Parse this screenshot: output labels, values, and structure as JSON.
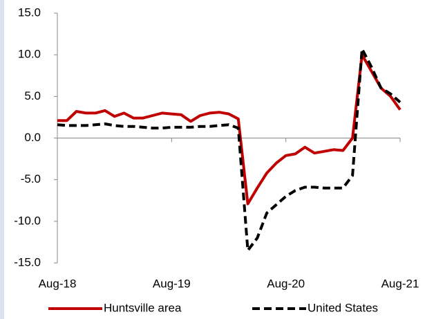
{
  "chart_data": {
    "type": "line",
    "categories": [
      "Aug-18",
      null,
      null,
      null,
      null,
      null,
      null,
      null,
      null,
      null,
      null,
      null,
      "Aug-19",
      null,
      null,
      null,
      null,
      null,
      null,
      null,
      null,
      null,
      null,
      null,
      "Aug-20",
      null,
      null,
      null,
      null,
      null,
      null,
      null,
      null,
      null,
      null,
      null,
      "Aug-21"
    ],
    "series": [
      {
        "name": "Huntsville area",
        "color": "#c00000",
        "dash": "solid",
        "values": [
          2.1,
          2.1,
          3.2,
          3.0,
          3.0,
          3.3,
          2.6,
          3.0,
          2.4,
          2.4,
          2.7,
          3.0,
          2.9,
          2.8,
          2.0,
          2.7,
          3.0,
          3.1,
          2.9,
          2.3,
          -7.9,
          -6.0,
          -4.2,
          -3.0,
          -2.1,
          -1.9,
          -1.1,
          -1.8,
          -1.6,
          -1.4,
          -1.5,
          0.0,
          10.0,
          8.0,
          6.0,
          5.0,
          3.4
        ]
      },
      {
        "name": "United States",
        "color": "#000000",
        "dash": "dashed",
        "values": [
          1.6,
          1.5,
          1.5,
          1.5,
          1.6,
          1.7,
          1.5,
          1.4,
          1.4,
          1.3,
          1.2,
          1.2,
          1.3,
          1.3,
          1.3,
          1.4,
          1.4,
          1.5,
          1.6,
          1.2,
          -13.5,
          -12.0,
          -9.0,
          -8.0,
          -7.0,
          -6.3,
          -5.9,
          -5.9,
          -6.0,
          -6.0,
          -6.0,
          -4.5,
          10.7,
          8.5,
          6.0,
          5.3,
          4.3
        ]
      }
    ],
    "ylim": [
      -15,
      15
    ],
    "yticks": [
      {
        "value": -15,
        "label": "-15.0"
      },
      {
        "value": -10,
        "label": "-10.0"
      },
      {
        "value": -5,
        "label": "-5.0"
      },
      {
        "value": 0,
        "label": "0.0"
      },
      {
        "value": 5,
        "label": "5.0"
      },
      {
        "value": 10,
        "label": "10.0"
      },
      {
        "value": 15,
        "label": "15.0"
      }
    ],
    "grid": false,
    "legend": "bottom"
  }
}
